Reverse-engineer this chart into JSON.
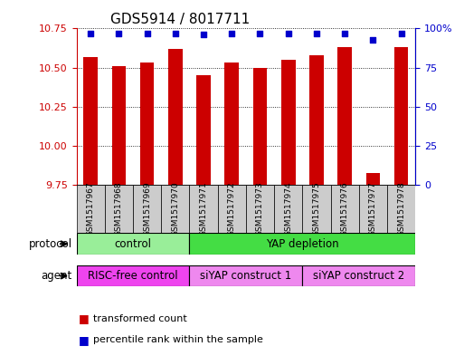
{
  "title": "GDS5914 / 8017711",
  "samples": [
    "GSM1517967",
    "GSM1517968",
    "GSM1517969",
    "GSM1517970",
    "GSM1517971",
    "GSM1517972",
    "GSM1517973",
    "GSM1517974",
    "GSM1517975",
    "GSM1517976",
    "GSM1517977",
    "GSM1517978"
  ],
  "transformed_counts": [
    10.57,
    10.51,
    10.53,
    10.62,
    10.45,
    10.53,
    10.5,
    10.55,
    10.58,
    10.63,
    9.83,
    10.63
  ],
  "percentile_ranks": [
    97,
    97,
    97,
    97,
    96,
    97,
    97,
    97,
    97,
    97,
    93,
    97
  ],
  "ylim_left": [
    9.75,
    10.75
  ],
  "ylim_right": [
    0,
    100
  ],
  "yticks_left": [
    9.75,
    10.0,
    10.25,
    10.5,
    10.75
  ],
  "yticks_right": [
    0,
    25,
    50,
    75,
    100
  ],
  "bar_color": "#cc0000",
  "dot_color": "#0000cc",
  "protocol_groups": [
    {
      "label": "control",
      "start": 0,
      "end": 4,
      "color": "#99ee99"
    },
    {
      "label": "YAP depletion",
      "start": 4,
      "end": 12,
      "color": "#44dd44"
    }
  ],
  "agent_groups": [
    {
      "label": "RISC-free control",
      "start": 0,
      "end": 4,
      "color": "#ee44ee"
    },
    {
      "label": "siYAP construct 1",
      "start": 4,
      "end": 8,
      "color": "#ee88ee"
    },
    {
      "label": "siYAP construct 2",
      "start": 8,
      "end": 12,
      "color": "#ee88ee"
    }
  ],
  "legend_items": [
    {
      "label": "transformed count",
      "color": "#cc0000"
    },
    {
      "label": "percentile rank within the sample",
      "color": "#0000cc"
    }
  ],
  "xlabel_protocol": "protocol",
  "xlabel_agent": "agent",
  "bar_width": 0.5,
  "xtick_bg_color": "#cccccc",
  "xtick_fontsize": 6.5,
  "title_fontsize": 11
}
